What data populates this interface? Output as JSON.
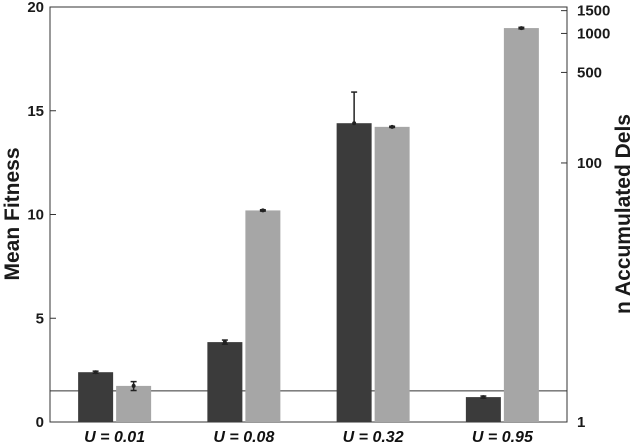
{
  "chart_data": {
    "type": "bar",
    "categories": [
      "U = 0.01",
      "U = 0.08",
      "U = 0.32",
      "U = 0.95"
    ],
    "series": [
      {
        "axis": "left",
        "color": "#3b3b3b",
        "values": [
          2.4,
          3.85,
          14.4,
          1.2
        ],
        "err_plus": [
          0.05,
          0.1,
          1.5,
          0.05
        ],
        "err_minus": [
          0.05,
          0.1,
          0.0,
          0.05
        ]
      },
      {
        "axis": "right",
        "color": "#a6a6a6",
        "values": [
          1.9,
          43,
          190,
          1100
        ],
        "err_plus": [
          0.15,
          0.5,
          2,
          15
        ],
        "err_minus": [
          0.15,
          0.5,
          2,
          15
        ]
      }
    ],
    "left_axis": {
      "label": "Mean Fitness",
      "ylim": [
        0,
        20
      ],
      "ticks": [
        0,
        5,
        10,
        15,
        20
      ],
      "tick_labels": [
        "0",
        "5",
        "10",
        "15",
        "20"
      ]
    },
    "right_axis": {
      "label": "n Accumulated Dels",
      "scale": "log",
      "ylim": [
        1,
        1600
      ],
      "ticks": [
        1,
        100,
        500,
        1000,
        1500
      ],
      "tick_labels": [
        "1",
        "100",
        "500",
        "1000",
        "1500"
      ]
    },
    "reference_line": {
      "axis": "left",
      "value": 1.5
    },
    "grid": false
  }
}
